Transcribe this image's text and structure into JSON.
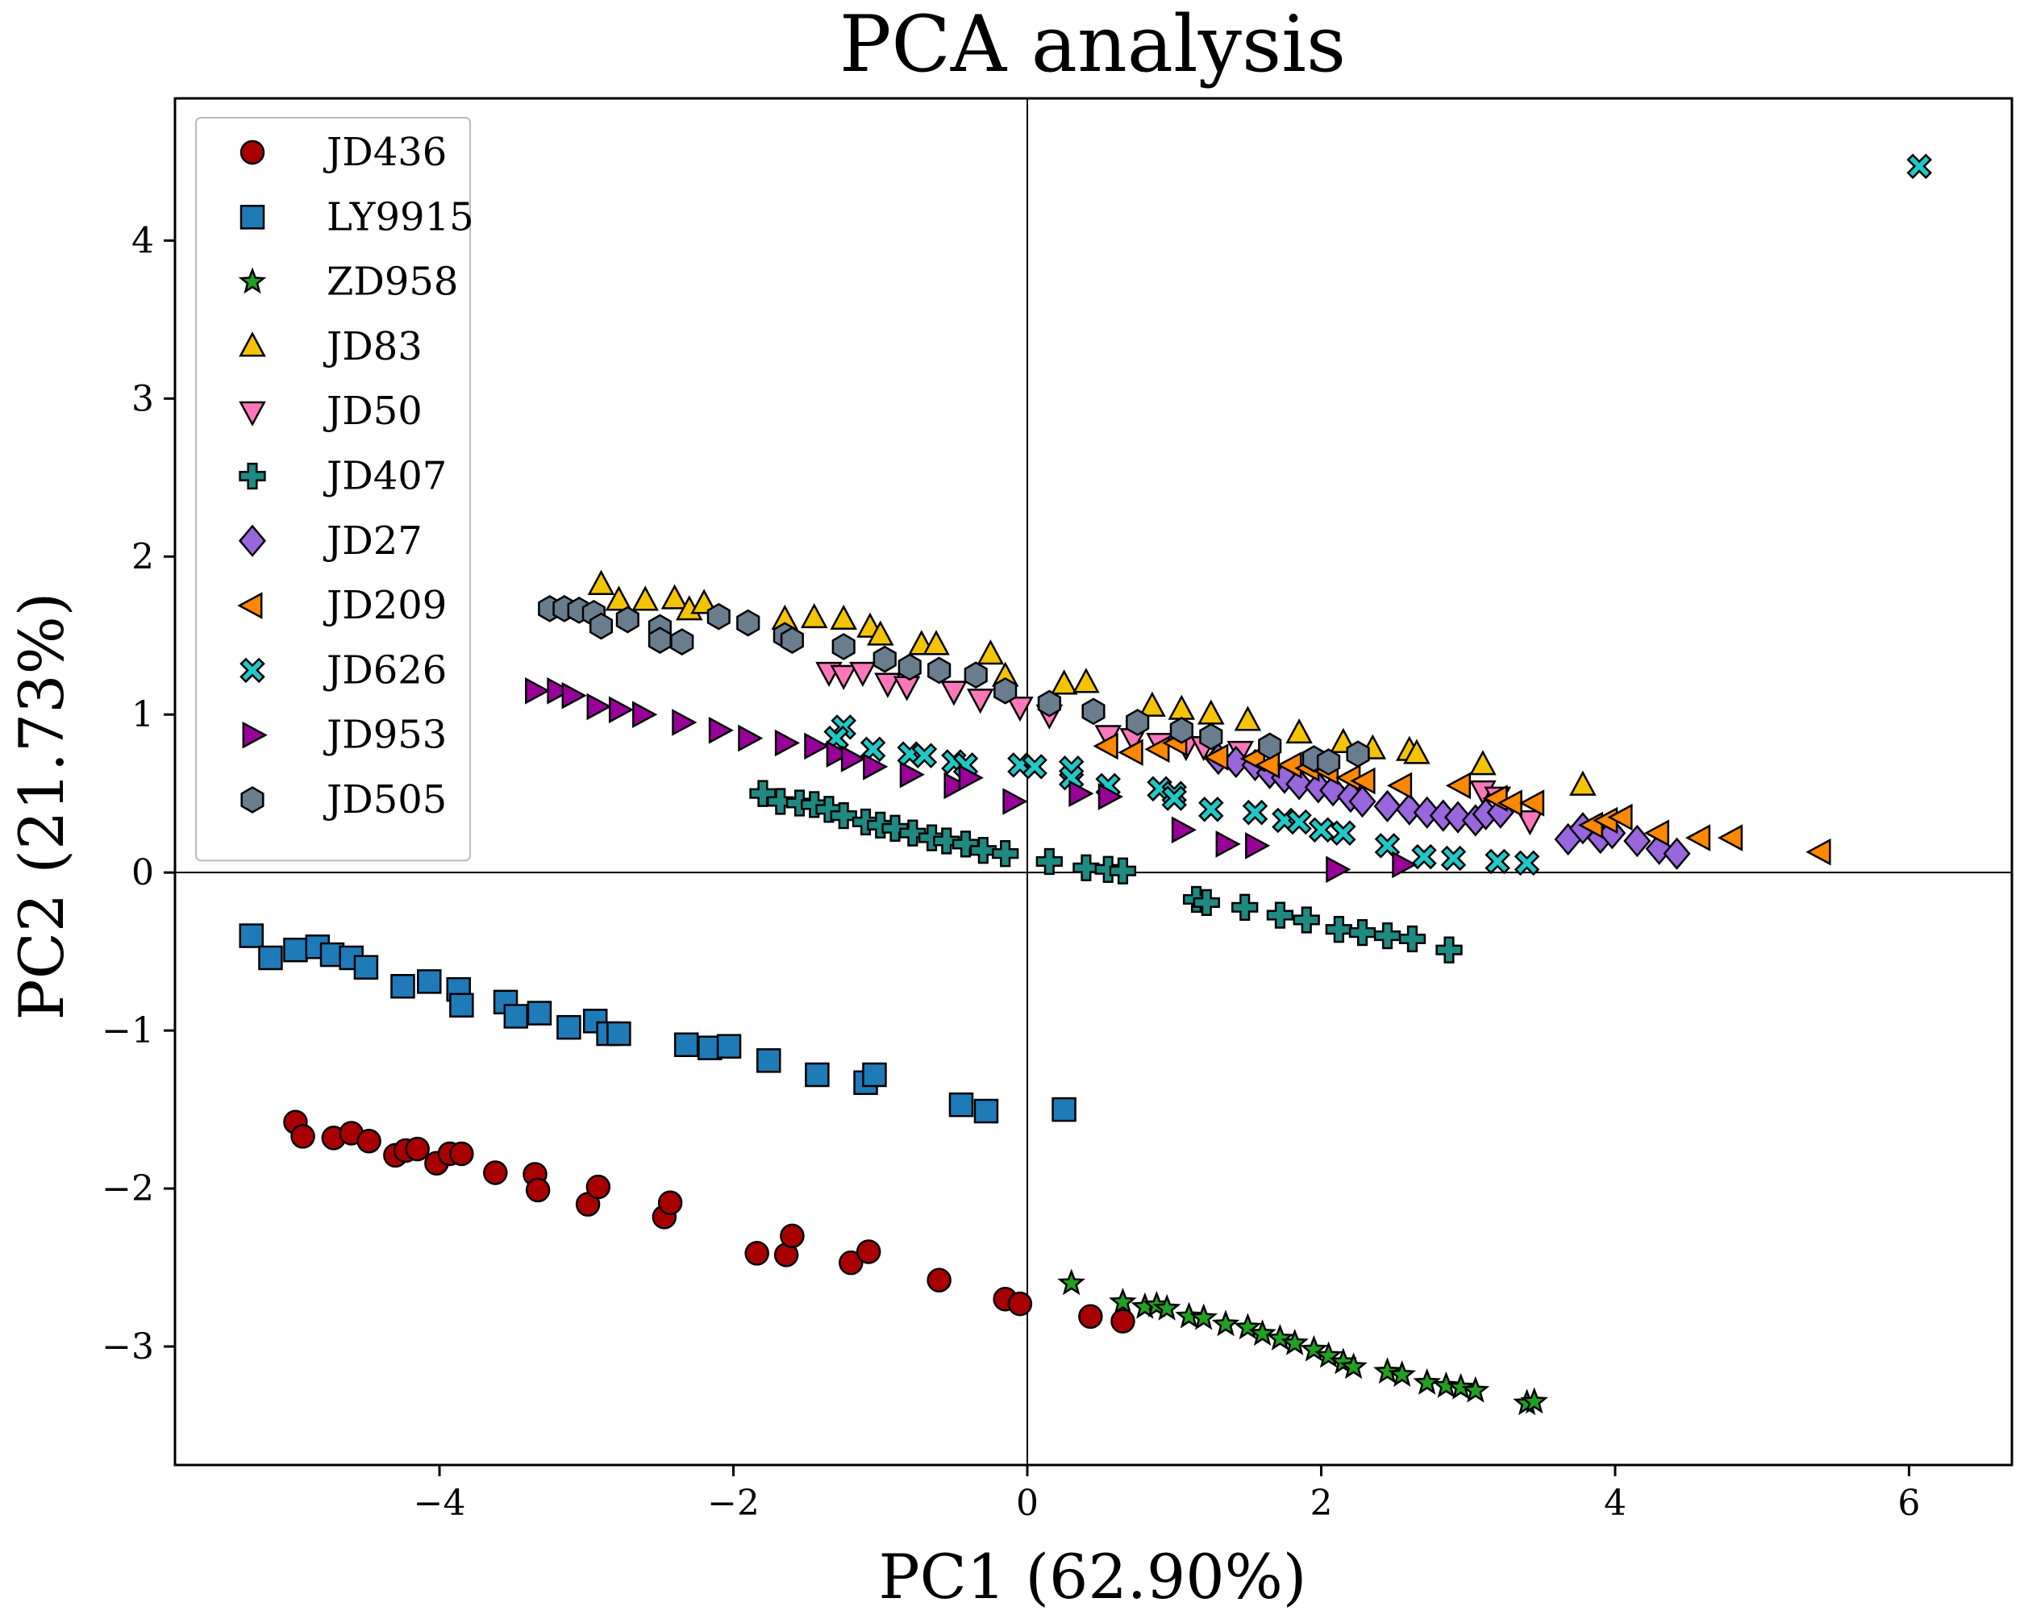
{
  "chart_data": {
    "type": "scatter",
    "title": "PCA analysis",
    "xlabel": "PC1 (62.90%)",
    "ylabel": "PC2 (21.73%)",
    "xlim": [
      -5.8,
      6.7
    ],
    "ylim": [
      -3.75,
      4.9
    ],
    "xticks": [
      -4,
      -2,
      0,
      2,
      4,
      6
    ],
    "yticks": [
      -3,
      -2,
      -1,
      0,
      1,
      2,
      3,
      4
    ],
    "reference_lines": {
      "x": 0,
      "y": 0
    },
    "legend_placement": "top-left",
    "grid": false,
    "series": [
      {
        "name": "JD436",
        "marker": "circle",
        "color": "#a80000",
        "points": [
          [
            -4.98,
            -1.58
          ],
          [
            -4.93,
            -1.67
          ],
          [
            -4.72,
            -1.68
          ],
          [
            -4.6,
            -1.65
          ],
          [
            -4.48,
            -1.7
          ],
          [
            -4.3,
            -1.79
          ],
          [
            -4.23,
            -1.76
          ],
          [
            -4.15,
            -1.75
          ],
          [
            -4.02,
            -1.84
          ],
          [
            -3.93,
            -1.78
          ],
          [
            -3.85,
            -1.78
          ],
          [
            -3.62,
            -1.9
          ],
          [
            -3.35,
            -1.91
          ],
          [
            -3.33,
            -2.01
          ],
          [
            -2.99,
            -2.1
          ],
          [
            -2.92,
            -1.99
          ],
          [
            -2.47,
            -2.18
          ],
          [
            -2.43,
            -2.09
          ],
          [
            -1.84,
            -2.41
          ],
          [
            -1.64,
            -2.42
          ],
          [
            -1.6,
            -2.3
          ],
          [
            -1.2,
            -2.47
          ],
          [
            -1.08,
            -2.4
          ],
          [
            -0.6,
            -2.58
          ],
          [
            -0.15,
            -2.7
          ],
          [
            -0.05,
            -2.73
          ],
          [
            0.43,
            -2.81
          ],
          [
            0.65,
            -2.84
          ]
        ]
      },
      {
        "name": "LY9915",
        "marker": "square",
        "color": "#1f7ab8",
        "points": [
          [
            -5.28,
            -0.4
          ],
          [
            -5.15,
            -0.54
          ],
          [
            -4.98,
            -0.49
          ],
          [
            -4.83,
            -0.47
          ],
          [
            -4.73,
            -0.52
          ],
          [
            -4.6,
            -0.54
          ],
          [
            -4.5,
            -0.6
          ],
          [
            -4.25,
            -0.72
          ],
          [
            -4.07,
            -0.69
          ],
          [
            -3.87,
            -0.74
          ],
          [
            -3.85,
            -0.84
          ],
          [
            -3.55,
            -0.82
          ],
          [
            -3.48,
            -0.91
          ],
          [
            -3.32,
            -0.89
          ],
          [
            -3.12,
            -0.98
          ],
          [
            -2.94,
            -0.94
          ],
          [
            -2.85,
            -1.02
          ],
          [
            -2.78,
            -1.02
          ],
          [
            -2.32,
            -1.09
          ],
          [
            -2.16,
            -1.11
          ],
          [
            -2.03,
            -1.1
          ],
          [
            -1.76,
            -1.19
          ],
          [
            -1.43,
            -1.28
          ],
          [
            -1.1,
            -1.33
          ],
          [
            -1.04,
            -1.28
          ],
          [
            -0.45,
            -1.47
          ],
          [
            -0.28,
            -1.51
          ],
          [
            0.25,
            -1.5
          ]
        ]
      },
      {
        "name": "ZD958",
        "marker": "star",
        "color": "#22a022",
        "points": [
          [
            0.3,
            -2.6
          ],
          [
            0.65,
            -2.72
          ],
          [
            0.8,
            -2.75
          ],
          [
            0.88,
            -2.74
          ],
          [
            0.95,
            -2.76
          ],
          [
            1.1,
            -2.81
          ],
          [
            1.2,
            -2.82
          ],
          [
            1.35,
            -2.86
          ],
          [
            1.5,
            -2.88
          ],
          [
            1.6,
            -2.92
          ],
          [
            1.72,
            -2.95
          ],
          [
            1.82,
            -2.98
          ],
          [
            1.95,
            -3.02
          ],
          [
            2.05,
            -3.06
          ],
          [
            2.15,
            -3.1
          ],
          [
            2.22,
            -3.13
          ],
          [
            2.45,
            -3.16
          ],
          [
            2.55,
            -3.18
          ],
          [
            2.72,
            -3.23
          ],
          [
            2.85,
            -3.25
          ],
          [
            2.95,
            -3.26
          ],
          [
            3.05,
            -3.28
          ],
          [
            3.4,
            -3.36
          ],
          [
            3.45,
            -3.35
          ]
        ]
      },
      {
        "name": "JD83",
        "marker": "triangle-up",
        "color": "#f5c400",
        "points": [
          [
            -2.9,
            1.82
          ],
          [
            -2.78,
            1.72
          ],
          [
            -2.6,
            1.72
          ],
          [
            -2.4,
            1.73
          ],
          [
            -2.3,
            1.66
          ],
          [
            -2.2,
            1.7
          ],
          [
            -1.65,
            1.6
          ],
          [
            -1.45,
            1.61
          ],
          [
            -1.25,
            1.6
          ],
          [
            -1.07,
            1.55
          ],
          [
            -1.0,
            1.5
          ],
          [
            -0.72,
            1.44
          ],
          [
            -0.62,
            1.44
          ],
          [
            -0.25,
            1.38
          ],
          [
            -0.15,
            1.24
          ],
          [
            0.25,
            1.19
          ],
          [
            0.4,
            1.2
          ],
          [
            0.85,
            1.05
          ],
          [
            1.05,
            1.03
          ],
          [
            1.25,
            1.0
          ],
          [
            1.5,
            0.96
          ],
          [
            1.85,
            0.88
          ],
          [
            2.15,
            0.82
          ],
          [
            2.35,
            0.78
          ],
          [
            2.6,
            0.77
          ],
          [
            2.65,
            0.75
          ],
          [
            3.1,
            0.68
          ],
          [
            3.78,
            0.55
          ]
        ]
      },
      {
        "name": "JD50",
        "marker": "triangle-down",
        "color": "#ff77bb",
        "points": [
          [
            -1.35,
            1.27
          ],
          [
            -1.25,
            1.25
          ],
          [
            -1.12,
            1.27
          ],
          [
            -0.95,
            1.2
          ],
          [
            -0.82,
            1.18
          ],
          [
            -0.5,
            1.15
          ],
          [
            -0.32,
            1.1
          ],
          [
            -0.05,
            1.05
          ],
          [
            0.15,
            1.0
          ],
          [
            0.55,
            0.87
          ],
          [
            0.72,
            0.85
          ],
          [
            0.9,
            0.82
          ],
          [
            1.08,
            0.8
          ],
          [
            1.2,
            0.8
          ],
          [
            1.45,
            0.77
          ],
          [
            3.1,
            0.52
          ],
          [
            3.2,
            0.48
          ],
          [
            3.42,
            0.33
          ]
        ]
      },
      {
        "name": "JD407",
        "marker": "plus",
        "color": "#1e8a82",
        "points": [
          [
            -1.8,
            0.5
          ],
          [
            -1.68,
            0.45
          ],
          [
            -1.55,
            0.44
          ],
          [
            -1.45,
            0.43
          ],
          [
            -1.35,
            0.4
          ],
          [
            -1.25,
            0.36
          ],
          [
            -1.1,
            0.32
          ],
          [
            -1.0,
            0.3
          ],
          [
            -0.9,
            0.28
          ],
          [
            -0.78,
            0.25
          ],
          [
            -0.65,
            0.22
          ],
          [
            -0.55,
            0.2
          ],
          [
            -0.42,
            0.18
          ],
          [
            -0.3,
            0.14
          ],
          [
            -0.15,
            0.12
          ],
          [
            0.15,
            0.07
          ],
          [
            0.4,
            0.03
          ],
          [
            0.55,
            0.02
          ],
          [
            0.65,
            0.01
          ],
          [
            1.15,
            -0.17
          ],
          [
            1.22,
            -0.19
          ],
          [
            1.48,
            -0.22
          ],
          [
            1.72,
            -0.27
          ],
          [
            1.9,
            -0.3
          ],
          [
            2.12,
            -0.36
          ],
          [
            2.28,
            -0.38
          ],
          [
            2.45,
            -0.4
          ],
          [
            2.62,
            -0.42
          ],
          [
            2.87,
            -0.49
          ]
        ]
      },
      {
        "name": "JD27",
        "marker": "diamond",
        "color": "#9966dd",
        "points": [
          [
            1.3,
            0.72
          ],
          [
            1.42,
            0.7
          ],
          [
            1.55,
            0.68
          ],
          [
            1.65,
            0.63
          ],
          [
            1.75,
            0.6
          ],
          [
            1.85,
            0.56
          ],
          [
            1.98,
            0.54
          ],
          [
            2.08,
            0.52
          ],
          [
            2.2,
            0.48
          ],
          [
            2.28,
            0.45
          ],
          [
            2.45,
            0.42
          ],
          [
            2.6,
            0.4
          ],
          [
            2.72,
            0.38
          ],
          [
            2.83,
            0.36
          ],
          [
            2.93,
            0.35
          ],
          [
            3.05,
            0.33
          ],
          [
            3.12,
            0.37
          ],
          [
            3.22,
            0.38
          ],
          [
            3.68,
            0.21
          ],
          [
            3.78,
            0.28
          ],
          [
            3.9,
            0.22
          ],
          [
            3.98,
            0.25
          ],
          [
            4.15,
            0.2
          ],
          [
            4.3,
            0.15
          ],
          [
            4.42,
            0.12
          ]
        ]
      },
      {
        "name": "JD209",
        "marker": "triangle-left",
        "color": "#ff8800",
        "points": [
          [
            0.55,
            0.8
          ],
          [
            0.72,
            0.76
          ],
          [
            0.9,
            0.78
          ],
          [
            1.02,
            0.82
          ],
          [
            1.3,
            0.73
          ],
          [
            1.55,
            0.72
          ],
          [
            1.65,
            0.68
          ],
          [
            1.8,
            0.68
          ],
          [
            1.92,
            0.66
          ],
          [
            2.05,
            0.64
          ],
          [
            2.2,
            0.6
          ],
          [
            2.3,
            0.58
          ],
          [
            2.55,
            0.55
          ],
          [
            2.95,
            0.55
          ],
          [
            3.2,
            0.47
          ],
          [
            3.3,
            0.44
          ],
          [
            3.45,
            0.44
          ],
          [
            3.85,
            0.3
          ],
          [
            3.95,
            0.33
          ],
          [
            4.05,
            0.35
          ],
          [
            4.3,
            0.25
          ],
          [
            4.58,
            0.22
          ],
          [
            4.8,
            0.22
          ],
          [
            5.4,
            0.13
          ]
        ]
      },
      {
        "name": "JD626",
        "marker": "x-filled",
        "color": "#20c8c8",
        "points": [
          [
            -1.25,
            0.92
          ],
          [
            -1.3,
            0.85
          ],
          [
            -1.05,
            0.78
          ],
          [
            -0.8,
            0.75
          ],
          [
            -0.7,
            0.74
          ],
          [
            -0.5,
            0.7
          ],
          [
            -0.42,
            0.68
          ],
          [
            -0.05,
            0.68
          ],
          [
            0.05,
            0.67
          ],
          [
            0.3,
            0.66
          ],
          [
            0.3,
            0.6
          ],
          [
            0.55,
            0.55
          ],
          [
            0.9,
            0.53
          ],
          [
            1.0,
            0.5
          ],
          [
            1.0,
            0.47
          ],
          [
            1.25,
            0.4
          ],
          [
            1.55,
            0.38
          ],
          [
            1.75,
            0.33
          ],
          [
            1.85,
            0.32
          ],
          [
            2.0,
            0.27
          ],
          [
            2.15,
            0.25
          ],
          [
            2.45,
            0.17
          ],
          [
            2.7,
            0.1
          ],
          [
            2.9,
            0.09
          ],
          [
            3.2,
            0.07
          ],
          [
            3.4,
            0.06
          ],
          [
            6.07,
            4.47
          ]
        ]
      },
      {
        "name": "JD953",
        "marker": "triangle-right",
        "color": "#990099",
        "points": [
          [
            -3.35,
            1.15
          ],
          [
            -3.2,
            1.15
          ],
          [
            -3.1,
            1.12
          ],
          [
            -2.93,
            1.05
          ],
          [
            -2.78,
            1.03
          ],
          [
            -2.62,
            1.0
          ],
          [
            -2.35,
            0.95
          ],
          [
            -2.1,
            0.9
          ],
          [
            -1.9,
            0.85
          ],
          [
            -1.65,
            0.82
          ],
          [
            -1.45,
            0.8
          ],
          [
            -1.3,
            0.75
          ],
          [
            -1.2,
            0.72
          ],
          [
            -1.05,
            0.67
          ],
          [
            -0.8,
            0.62
          ],
          [
            -0.5,
            0.55
          ],
          [
            -0.4,
            0.6
          ],
          [
            -0.1,
            0.45
          ],
          [
            0.35,
            0.5
          ],
          [
            0.55,
            0.48
          ],
          [
            1.05,
            0.27
          ],
          [
            1.35,
            0.18
          ],
          [
            1.55,
            0.17
          ],
          [
            2.1,
            0.02
          ],
          [
            2.55,
            0.05
          ]
        ]
      },
      {
        "name": "JD505",
        "marker": "hexagon",
        "color": "#6a7d8e",
        "points": [
          [
            -3.25,
            1.67
          ],
          [
            -3.15,
            1.67
          ],
          [
            -3.05,
            1.66
          ],
          [
            -2.95,
            1.64
          ],
          [
            -2.9,
            1.56
          ],
          [
            -2.72,
            1.6
          ],
          [
            -2.5,
            1.55
          ],
          [
            -2.5,
            1.47
          ],
          [
            -2.35,
            1.46
          ],
          [
            -2.1,
            1.62
          ],
          [
            -1.9,
            1.58
          ],
          [
            -1.65,
            1.5
          ],
          [
            -1.6,
            1.47
          ],
          [
            -1.25,
            1.43
          ],
          [
            -0.97,
            1.35
          ],
          [
            -0.8,
            1.3
          ],
          [
            -0.6,
            1.28
          ],
          [
            -0.35,
            1.25
          ],
          [
            -0.15,
            1.15
          ],
          [
            0.15,
            1.07
          ],
          [
            0.45,
            1.02
          ],
          [
            0.75,
            0.95
          ],
          [
            1.05,
            0.9
          ],
          [
            1.25,
            0.86
          ],
          [
            1.65,
            0.8
          ],
          [
            1.95,
            0.72
          ],
          [
            2.05,
            0.7
          ],
          [
            2.25,
            0.75
          ]
        ]
      }
    ]
  }
}
